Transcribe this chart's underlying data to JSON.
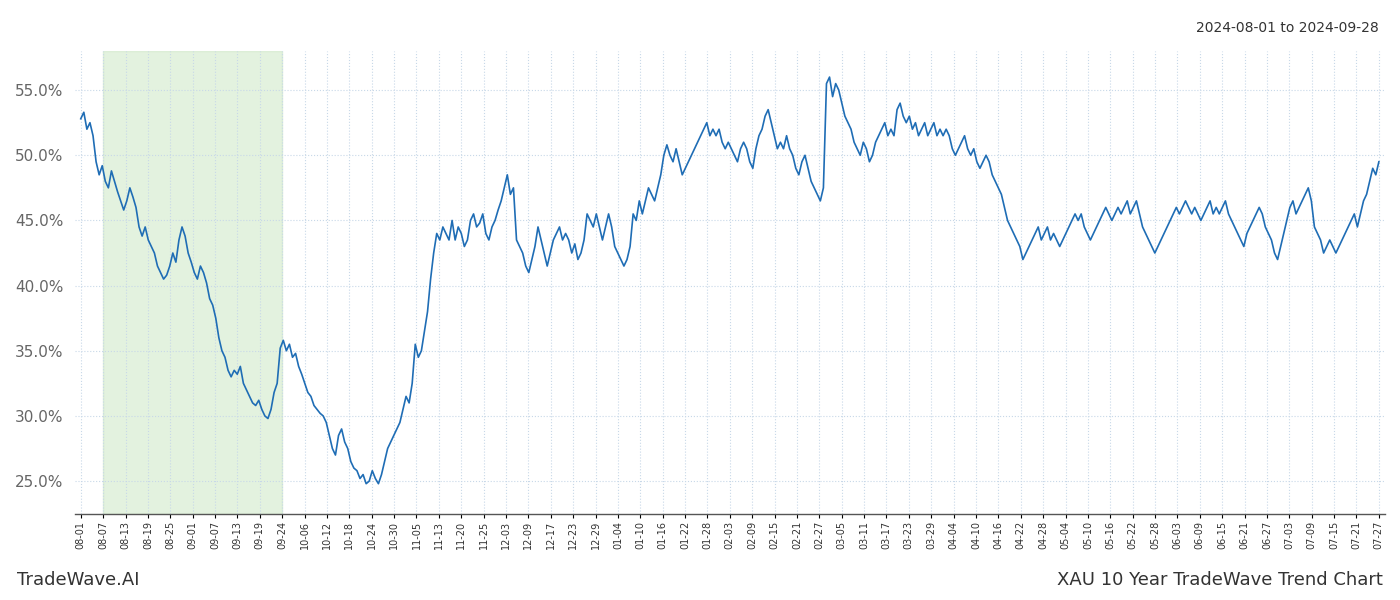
{
  "title_right": "2024-08-01 to 2024-09-28",
  "footer_left": "TradeWave.AI",
  "footer_right": "XAU 10 Year TradeWave Trend Chart",
  "bg_color": "#ffffff",
  "line_color": "#1f6db5",
  "grid_color": "#c8d8e8",
  "shade_color": "#c8e6c0",
  "shade_alpha": 0.5,
  "ylim": [
    22.5,
    58.0
  ],
  "yticks": [
    25.0,
    30.0,
    35.0,
    40.0,
    45.0,
    50.0,
    55.0
  ],
  "x_labels": [
    "08-01",
    "08-07",
    "08-13",
    "08-19",
    "08-25",
    "09-01",
    "09-07",
    "09-13",
    "09-19",
    "09-24",
    "10-06",
    "10-12",
    "10-18",
    "10-24",
    "10-30",
    "11-05",
    "11-13",
    "11-20",
    "11-25",
    "12-03",
    "12-09",
    "12-17",
    "12-23",
    "12-29",
    "01-04",
    "01-10",
    "01-16",
    "01-22",
    "01-28",
    "02-03",
    "02-09",
    "02-15",
    "02-21",
    "02-27",
    "03-05",
    "03-11",
    "03-17",
    "03-23",
    "03-29",
    "04-04",
    "04-10",
    "04-16",
    "04-22",
    "04-28",
    "05-04",
    "05-10",
    "05-16",
    "05-22",
    "05-28",
    "06-03",
    "06-09",
    "06-15",
    "06-21",
    "06-27",
    "07-03",
    "07-09",
    "07-15",
    "07-21",
    "07-27"
  ],
  "shade_start_label": "08-07",
  "shade_end_label": "09-24",
  "values": [
    52.8,
    53.3,
    52.0,
    52.5,
    51.5,
    49.5,
    48.5,
    49.2,
    48.0,
    47.5,
    48.8,
    48.0,
    47.2,
    46.5,
    45.8,
    46.5,
    47.5,
    46.8,
    46.0,
    44.5,
    43.8,
    44.5,
    43.5,
    43.0,
    42.5,
    41.5,
    41.0,
    40.5,
    40.8,
    41.5,
    42.5,
    41.8,
    43.5,
    44.5,
    43.8,
    42.5,
    41.8,
    41.0,
    40.5,
    41.5,
    41.0,
    40.2,
    39.0,
    38.5,
    37.5,
    36.0,
    35.0,
    34.5,
    33.5,
    33.0,
    33.5,
    33.2,
    33.8,
    32.5,
    32.0,
    31.5,
    31.0,
    30.8,
    31.2,
    30.5,
    30.0,
    29.8,
    30.5,
    31.8,
    32.5,
    35.2,
    35.8,
    35.0,
    35.5,
    34.5,
    34.8,
    33.8,
    33.2,
    32.5,
    31.8,
    31.5,
    30.8,
    30.5,
    30.2,
    30.0,
    29.5,
    28.5,
    27.5,
    27.0,
    28.5,
    29.0,
    28.0,
    27.5,
    26.5,
    26.0,
    25.8,
    25.2,
    25.5,
    24.8,
    25.0,
    25.8,
    25.2,
    24.8,
    25.5,
    26.5,
    27.5,
    28.0,
    28.5,
    29.0,
    29.5,
    30.5,
    31.5,
    31.0,
    32.5,
    35.5,
    34.5,
    35.0,
    36.5,
    38.0,
    40.5,
    42.5,
    44.0,
    43.5,
    44.5,
    44.0,
    43.5,
    45.0,
    43.5,
    44.5,
    44.0,
    43.0,
    43.5,
    45.0,
    45.5,
    44.5,
    44.8,
    45.5,
    44.0,
    43.5,
    44.5,
    45.0,
    45.8,
    46.5,
    47.5,
    48.5,
    47.0,
    47.5,
    43.5,
    43.0,
    42.5,
    41.5,
    41.0,
    42.0,
    43.0,
    44.5,
    43.5,
    42.5,
    41.5,
    42.5,
    43.5,
    44.0,
    44.5,
    43.5,
    44.0,
    43.5,
    42.5,
    43.2,
    42.0,
    42.5,
    43.5,
    45.5,
    45.0,
    44.5,
    45.5,
    44.5,
    43.5,
    44.5,
    45.5,
    44.5,
    43.0,
    42.5,
    42.0,
    41.5,
    42.0,
    43.0,
    45.5,
    45.0,
    46.5,
    45.5,
    46.5,
    47.5,
    47.0,
    46.5,
    47.5,
    48.5,
    50.0,
    50.8,
    50.0,
    49.5,
    50.5,
    49.5,
    48.5,
    49.0,
    49.5,
    50.0,
    50.5,
    51.0,
    51.5,
    52.0,
    52.5,
    51.5,
    52.0,
    51.5,
    52.0,
    51.0,
    50.5,
    51.0,
    50.5,
    50.0,
    49.5,
    50.5,
    51.0,
    50.5,
    49.5,
    49.0,
    50.5,
    51.5,
    52.0,
    53.0,
    53.5,
    52.5,
    51.5,
    50.5,
    51.0,
    50.5,
    51.5,
    50.5,
    50.0,
    49.0,
    48.5,
    49.5,
    50.0,
    49.0,
    48.0,
    47.5,
    47.0,
    46.5,
    47.5,
    55.5,
    56.0,
    54.5,
    55.5,
    55.0,
    54.0,
    53.0,
    52.5,
    52.0,
    51.0,
    50.5,
    50.0,
    51.0,
    50.5,
    49.5,
    50.0,
    51.0,
    51.5,
    52.0,
    52.5,
    51.5,
    52.0,
    51.5,
    53.5,
    54.0,
    53.0,
    52.5,
    53.0,
    52.0,
    52.5,
    51.5,
    52.0,
    52.5,
    51.5,
    52.0,
    52.5,
    51.5,
    52.0,
    51.5,
    52.0,
    51.5,
    50.5,
    50.0,
    50.5,
    51.0,
    51.5,
    50.5,
    50.0,
    50.5,
    49.5,
    49.0,
    49.5,
    50.0,
    49.5,
    48.5,
    48.0,
    47.5,
    47.0,
    46.0,
    45.0,
    44.5,
    44.0,
    43.5,
    43.0,
    42.0,
    42.5,
    43.0,
    43.5,
    44.0,
    44.5,
    43.5,
    44.0,
    44.5,
    43.5,
    44.0,
    43.5,
    43.0,
    43.5,
    44.0,
    44.5,
    45.0,
    45.5,
    45.0,
    45.5,
    44.5,
    44.0,
    43.5,
    44.0,
    44.5,
    45.0,
    45.5,
    46.0,
    45.5,
    45.0,
    45.5,
    46.0,
    45.5,
    46.0,
    46.5,
    45.5,
    46.0,
    46.5,
    45.5,
    44.5,
    44.0,
    43.5,
    43.0,
    42.5,
    43.0,
    43.5,
    44.0,
    44.5,
    45.0,
    45.5,
    46.0,
    45.5,
    46.0,
    46.5,
    46.0,
    45.5,
    46.0,
    45.5,
    45.0,
    45.5,
    46.0,
    46.5,
    45.5,
    46.0,
    45.5,
    46.0,
    46.5,
    45.5,
    45.0,
    44.5,
    44.0,
    43.5,
    43.0,
    44.0,
    44.5,
    45.0,
    45.5,
    46.0,
    45.5,
    44.5,
    44.0,
    43.5,
    42.5,
    42.0,
    43.0,
    44.0,
    45.0,
    46.0,
    46.5,
    45.5,
    46.0,
    46.5,
    47.0,
    47.5,
    46.5,
    44.5,
    44.0,
    43.5,
    42.5,
    43.0,
    43.5,
    43.0,
    42.5,
    43.0,
    43.5,
    44.0,
    44.5,
    45.0,
    45.5,
    44.5,
    45.5,
    46.5,
    47.0,
    48.0,
    49.0,
    48.5,
    49.5
  ]
}
